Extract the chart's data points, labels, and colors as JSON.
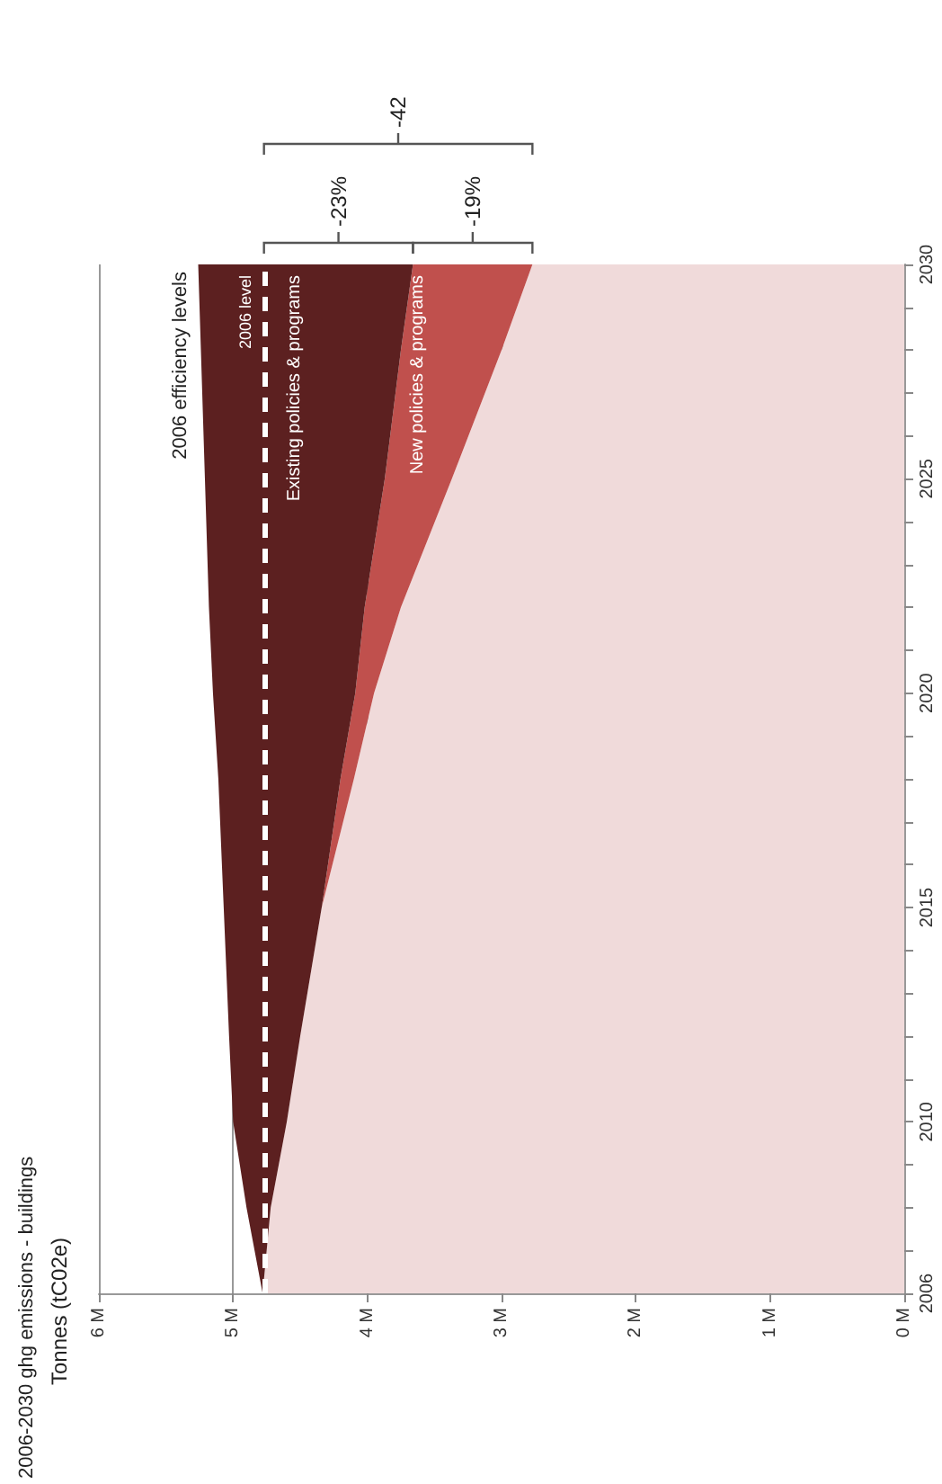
{
  "chart_data": {
    "type": "area",
    "stacked": true,
    "orientation": "horizontal",
    "title": "2006-2030 ghg emissions - buildings",
    "subtitle": "Tonnes (tC02e)",
    "x": [
      2006,
      2008,
      2010,
      2012,
      2015,
      2018,
      2020,
      2022,
      2025,
      2028,
      2030
    ],
    "series": [
      {
        "color": "#f0dada",
        "values": [
          4.78,
          4.72,
          4.6,
          4.5,
          4.34,
          4.1,
          3.95,
          3.75,
          3.37,
          3.0,
          2.77
        ]
      },
      {
        "name": "New policies & programs",
        "color": "#c0504d",
        "values": [
          0,
          0,
          0,
          0,
          0,
          0.1,
          0.14,
          0.27,
          0.5,
          0.75,
          0.89
        ]
      },
      {
        "name": "Existing policies & programs",
        "color": "#5c2020",
        "values": [
          0,
          0.18,
          0.4,
          0.53,
          0.73,
          0.91,
          1.06,
          1.16,
          1.34,
          1.49,
          1.6
        ]
      }
    ],
    "xlim": [
      6,
      0
    ],
    "xticks": [
      {
        "value": 0,
        "label": "0 M"
      },
      {
        "value": 1,
        "label": "1 M"
      },
      {
        "value": 2,
        "label": "2 M"
      },
      {
        "value": 3,
        "label": "3 M"
      },
      {
        "value": 4,
        "label": "4 M"
      },
      {
        "value": 5,
        "label": "5 M"
      },
      {
        "value": 6,
        "label": "6 M"
      }
    ],
    "ylim": [
      2006,
      2030
    ],
    "yticks": [
      2006,
      {
        "value": 2007,
        "label": null
      },
      {
        "value": 2008,
        "label": null
      },
      {
        "value": 2009,
        "label": null
      },
      2010,
      {
        "value": 2011,
        "label": null
      },
      {
        "value": 2012,
        "label": null
      },
      {
        "value": 2013,
        "label": null
      },
      {
        "value": 2014,
        "label": null
      },
      2015,
      {
        "value": 2016,
        "label": null
      },
      {
        "value": 2017,
        "label": null
      },
      {
        "value": 2018,
        "label": null
      },
      {
        "value": 2019,
        "label": null
      },
      2020,
      {
        "value": 2021,
        "label": null
      },
      {
        "value": 2022,
        "label": null
      },
      {
        "value": 2023,
        "label": null
      },
      {
        "value": 2024,
        "label": null
      },
      2025,
      {
        "value": 2026,
        "label": null
      },
      {
        "value": 2027,
        "label": null
      },
      {
        "value": 2028,
        "label": null
      },
      {
        "value": 2029,
        "label": null
      },
      2030
    ],
    "grid": "x",
    "ref_lines": [
      {
        "axis": "x",
        "value": 4.77,
        "label": "2006 level",
        "color": "#ffffff",
        "line_style": "dashed"
      }
    ],
    "annotations": [
      "-23%",
      "-19%",
      "-42",
      "2006 efficiency levels"
    ]
  }
}
